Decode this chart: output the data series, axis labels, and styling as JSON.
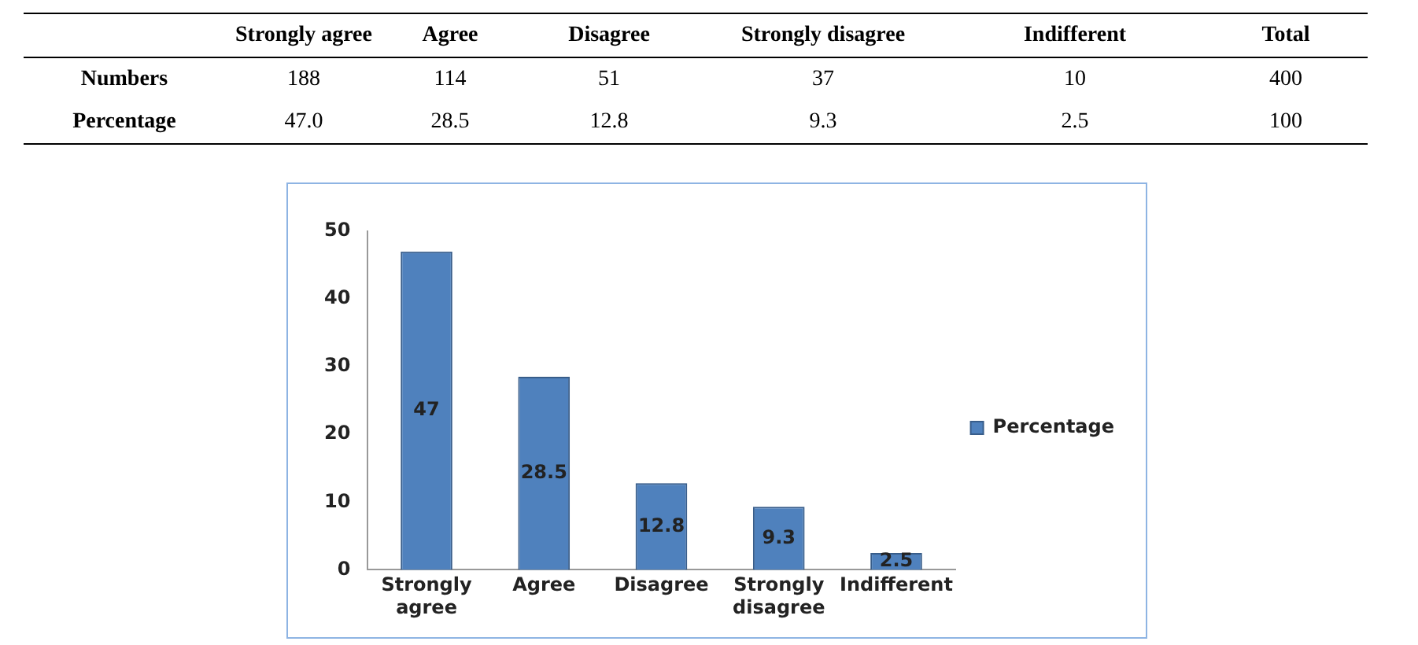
{
  "chart_data": [
    {
      "type": "other",
      "categories": [
        "Strongly agree",
        "Agree",
        "Disagree",
        "Strongly disagree",
        "Indifferent",
        "Total"
      ],
      "series": [
        {
          "name": "Numbers",
          "values": [
            188,
            114,
            51,
            37,
            10,
            400
          ],
          "value_labels": [
            "188",
            "114",
            "51",
            "37",
            "10",
            "400"
          ]
        },
        {
          "name": "Percentage",
          "values": [
            47.0,
            28.5,
            12.8,
            9.3,
            2.5,
            100
          ],
          "value_labels": [
            "47.0",
            "28.5",
            "12.8",
            "9.3",
            "2.5",
            "100"
          ]
        }
      ]
    },
    {
      "type": "bar",
      "categories": [
        "Strongly agree",
        "Agree",
        "Disagree",
        "Strongly disagree",
        "Indifferent"
      ],
      "series": [
        {
          "name": "Percentage",
          "color": "#4f81bd",
          "values": [
            47,
            28.5,
            12.8,
            9.3,
            2.5
          ]
        }
      ],
      "ylim": [
        0,
        50
      ],
      "yticks": [
        0,
        10,
        20,
        30,
        40,
        50
      ],
      "grid": false,
      "legend": "right",
      "data_labels": true
    }
  ]
}
